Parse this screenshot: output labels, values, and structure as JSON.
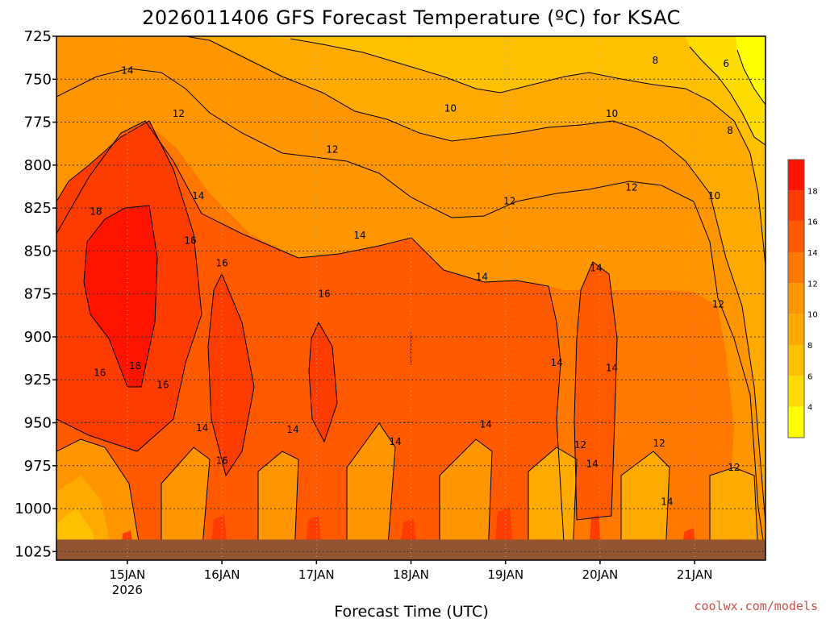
{
  "chart_data": {
    "type": "heatmap",
    "title": "2026011406 GFS Forecast Temperature (ºC) for KSAC",
    "xlabel": "Forecast Time (UTC)",
    "ylabel": "",
    "credit": "coolwx.com/models",
    "x_ticks": [
      {
        "label": "15JAN",
        "sublabel": "2026",
        "hours": 18
      },
      {
        "label": "16JAN",
        "sublabel": "",
        "hours": 42
      },
      {
        "label": "17JAN",
        "sublabel": "",
        "hours": 66
      },
      {
        "label": "18JAN",
        "sublabel": "",
        "hours": 90
      },
      {
        "label": "19JAN",
        "sublabel": "",
        "hours": 114
      },
      {
        "label": "20JAN",
        "sublabel": "",
        "hours": 138
      },
      {
        "label": "21JAN",
        "sublabel": "",
        "hours": 162
      }
    ],
    "xlim_hours": [
      0,
      180
    ],
    "y_ticks": [
      "725",
      "750",
      "775",
      "800",
      "825",
      "850",
      "875",
      "900",
      "925",
      "950",
      "975",
      "1000",
      "1025"
    ],
    "ylim_hpa": [
      725,
      1030
    ],
    "surface_pressure_hpa": 1018,
    "colorbar": {
      "levels": [
        2,
        4,
        6,
        8,
        10,
        12,
        14,
        16,
        18,
        20
      ],
      "tick_labels": [
        "4",
        "6",
        "8",
        "10",
        "12",
        "14",
        "16",
        "18"
      ],
      "colors": [
        "#ffff00",
        "#ffdc00",
        "#ffc000",
        "#ffaa00",
        "#ff9600",
        "#ff7800",
        "#ff5a00",
        "#ff3c00",
        "#ff1400"
      ]
    },
    "contour_labels": [
      {
        "text": "14",
        "h": 18,
        "p": 745
      },
      {
        "text": "12",
        "h": 31,
        "p": 770
      },
      {
        "text": "10",
        "h": 100,
        "p": 767
      },
      {
        "text": "8",
        "h": 152,
        "p": 739
      },
      {
        "text": "10",
        "h": 141,
        "p": 770
      },
      {
        "text": "6",
        "h": 170,
        "p": 741
      },
      {
        "text": "8",
        "h": 171,
        "p": 780
      },
      {
        "text": "12",
        "h": 70,
        "p": 791
      },
      {
        "text": "12",
        "h": 115,
        "p": 821
      },
      {
        "text": "12",
        "h": 146,
        "p": 813
      },
      {
        "text": "10",
        "h": 167,
        "p": 818
      },
      {
        "text": "14",
        "h": 36,
        "p": 818
      },
      {
        "text": "14",
        "h": 77,
        "p": 841
      },
      {
        "text": "14",
        "h": 108,
        "p": 865
      },
      {
        "text": "14",
        "h": 137,
        "p": 860
      },
      {
        "text": "12",
        "h": 168,
        "p": 881
      },
      {
        "text": "18",
        "h": 10,
        "p": 827
      },
      {
        "text": "16",
        "h": 34,
        "p": 844
      },
      {
        "text": "16",
        "h": 42,
        "p": 857
      },
      {
        "text": "16",
        "h": 68,
        "p": 875
      },
      {
        "text": "18",
        "h": 20,
        "p": 917
      },
      {
        "text": "16",
        "h": 11,
        "p": 921
      },
      {
        "text": "16",
        "h": 27,
        "p": 928
      },
      {
        "text": "14",
        "h": 127,
        "p": 915
      },
      {
        "text": "14",
        "h": 141,
        "p": 918
      },
      {
        "text": "14",
        "h": 37,
        "p": 953
      },
      {
        "text": "14",
        "h": 60,
        "p": 954
      },
      {
        "text": "14",
        "h": 86,
        "p": 961
      },
      {
        "text": "14",
        "h": 109,
        "p": 951
      },
      {
        "text": "16",
        "h": 42,
        "p": 972
      },
      {
        "text": "12",
        "h": 133,
        "p": 963
      },
      {
        "text": "12",
        "h": 153,
        "p": 962
      },
      {
        "text": "14",
        "h": 136,
        "p": 974
      },
      {
        "text": "12",
        "h": 172,
        "p": 976
      },
      {
        "text": "14",
        "h": 155,
        "p": 996
      }
    ]
  }
}
